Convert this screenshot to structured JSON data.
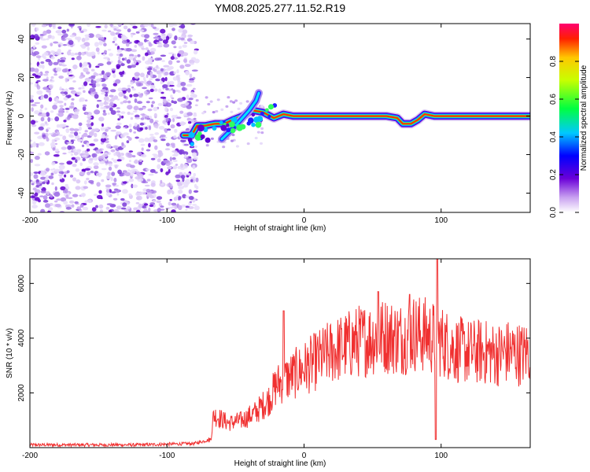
{
  "title": "YM08.2025.277.11.52.R19",
  "chart_data": [
    {
      "type": "heatmap",
      "name": "spectrogram",
      "xlabel": "Height of straight line (km)",
      "ylabel": "Frequency (Hz)",
      "xlim": [
        -200,
        165
      ],
      "ylim": [
        -50,
        48
      ],
      "xticks": [
        -200,
        -100,
        0,
        100
      ],
      "yticks": [
        -40,
        -20,
        0,
        20,
        40
      ],
      "colorbar": {
        "label": "Normalized spectral amplitude",
        "range": [
          0,
          1
        ],
        "ticks": [
          0.0,
          0.2,
          0.4,
          0.6,
          0.8
        ]
      },
      "noise_region": {
        "x_from": -200,
        "x_to": -80
      },
      "ridge": [
        {
          "x": -88,
          "y": -10
        },
        {
          "x": -82,
          "y": -10
        },
        {
          "x": -78,
          "y": -5
        },
        {
          "x": -72,
          "y": -5
        },
        {
          "x": -65,
          "y": -4
        },
        {
          "x": -58,
          "y": -4
        },
        {
          "x": -52,
          "y": -2
        },
        {
          "x": -45,
          "y": 0
        },
        {
          "x": -38,
          "y": 3
        },
        {
          "x": -30,
          "y": 2
        },
        {
          "x": -22,
          "y": -1
        },
        {
          "x": -15,
          "y": 1
        },
        {
          "x": -8,
          "y": 0
        },
        {
          "x": 0,
          "y": 0
        },
        {
          "x": 20,
          "y": 0
        },
        {
          "x": 40,
          "y": 0
        },
        {
          "x": 60,
          "y": 0
        },
        {
          "x": 68,
          "y": -1
        },
        {
          "x": 72,
          "y": -4
        },
        {
          "x": 78,
          "y": -4
        },
        {
          "x": 83,
          "y": -2
        },
        {
          "x": 88,
          "y": 1
        },
        {
          "x": 95,
          "y": 0
        },
        {
          "x": 120,
          "y": 0
        },
        {
          "x": 165,
          "y": 0
        }
      ],
      "diagonal_streak": [
        {
          "x": -60,
          "y": -12
        },
        {
          "x": -50,
          "y": -5
        },
        {
          "x": -40,
          "y": 3
        },
        {
          "x": -35,
          "y": 8
        },
        {
          "x": -33,
          "y": 12
        }
      ]
    },
    {
      "type": "line",
      "name": "snr",
      "xlabel": "Height of straight line (km)",
      "ylabel": "SNR (10 * v/v)",
      "xlim": [
        -200,
        165
      ],
      "ylim": [
        0,
        6900
      ],
      "xticks": [
        -200,
        -100,
        0,
        100
      ],
      "yticks": [
        2000,
        4000,
        6000
      ],
      "color": "#f03030",
      "envelope": [
        {
          "x": -200,
          "y": 100
        },
        {
          "x": -120,
          "y": 100
        },
        {
          "x": -80,
          "y": 150
        },
        {
          "x": -68,
          "y": 300
        },
        {
          "x": -66,
          "y": 1200
        },
        {
          "x": -55,
          "y": 900
        },
        {
          "x": -45,
          "y": 1000
        },
        {
          "x": -35,
          "y": 1300
        },
        {
          "x": -25,
          "y": 1800
        },
        {
          "x": -20,
          "y": 2300
        },
        {
          "x": -10,
          "y": 2600
        },
        {
          "x": 0,
          "y": 2900
        },
        {
          "x": 10,
          "y": 3200
        },
        {
          "x": 20,
          "y": 3500
        },
        {
          "x": 30,
          "y": 3700
        },
        {
          "x": 40,
          "y": 3900
        },
        {
          "x": 50,
          "y": 4000
        },
        {
          "x": 60,
          "y": 4100
        },
        {
          "x": 70,
          "y": 4000
        },
        {
          "x": 80,
          "y": 4200
        },
        {
          "x": 90,
          "y": 4100
        },
        {
          "x": 100,
          "y": 3900
        },
        {
          "x": 110,
          "y": 3600
        },
        {
          "x": 120,
          "y": 3500
        },
        {
          "x": 130,
          "y": 3500
        },
        {
          "x": 140,
          "y": 3400
        },
        {
          "x": 150,
          "y": 3500
        },
        {
          "x": 160,
          "y": 3400
        },
        {
          "x": 165,
          "y": 3600
        }
      ],
      "peaks": [
        {
          "x": 97,
          "y": 6900
        },
        {
          "x": 54,
          "y": 5700
        },
        {
          "x": 77,
          "y": 5600
        },
        {
          "x": -15,
          "y": 5000
        },
        {
          "x": 96,
          "y": 300
        }
      ]
    }
  ]
}
